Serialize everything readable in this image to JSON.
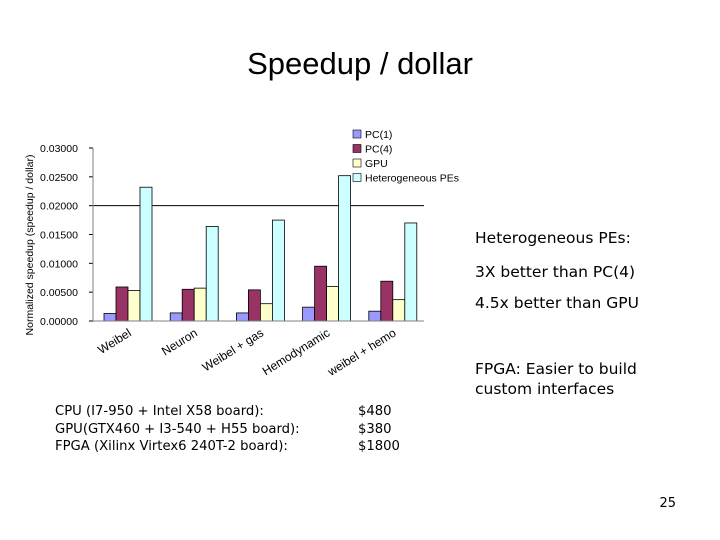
{
  "slide": {
    "title": "Speedup / dollar",
    "page_number": "25"
  },
  "notes": {
    "heading": "Heterogeneous PEs:",
    "vs_pc": "3X better than PC(4)",
    "vs_gpu": "4.5x better than GPU",
    "fpga": "FPGA: Easier to build custom interfaces"
  },
  "costs": [
    {
      "label": "CPU (I7-950 + Intel X58 board):",
      "value": "$480"
    },
    {
      "label": "GPU(GTX460 + I3-540 + H55 board):",
      "value": "$380"
    },
    {
      "label": "FPGA (Xilinx Virtex6 240T-2 board):",
      "value": "$1800"
    }
  ],
  "colors": {
    "pc1": "#9999ff",
    "pc4": "#993366",
    "gpu": "#ffffcc",
    "heterogeneous": "#ccffff",
    "plot_area": "#ffffff",
    "gridline": "#000000"
  },
  "chart_data": {
    "type": "bar",
    "title": "",
    "xlabel": "",
    "ylabel": "Normalized speedup (speedup / dollar)",
    "ylim": [
      0,
      0.03
    ],
    "yticks": [
      "0.00000",
      "0.00500",
      "0.01000",
      "0.01500",
      "0.02000",
      "0.02500",
      "0.03000"
    ],
    "grid": "major gridline at 0.02000",
    "legend_position": "top-right",
    "categories": [
      "Weibel",
      "Neuron",
      "Weibel + gas",
      "Hemodynamic",
      "weibel + hemo"
    ],
    "series": [
      {
        "name": "PC(1)",
        "color_key": "pc1",
        "values": [
          0.0013,
          0.0014,
          0.0014,
          0.0024,
          0.0017
        ]
      },
      {
        "name": "PC(4)",
        "color_key": "pc4",
        "values": [
          0.0059,
          0.0055,
          0.0054,
          0.0095,
          0.0069
        ]
      },
      {
        "name": "GPU",
        "color_key": "gpu",
        "values": [
          0.0053,
          0.0057,
          0.003,
          0.006,
          0.0037
        ]
      },
      {
        "name": "Heterogeneous PEs",
        "color_key": "heterogeneous",
        "values": [
          0.0232,
          0.0164,
          0.0175,
          0.0252,
          0.017
        ]
      }
    ]
  }
}
